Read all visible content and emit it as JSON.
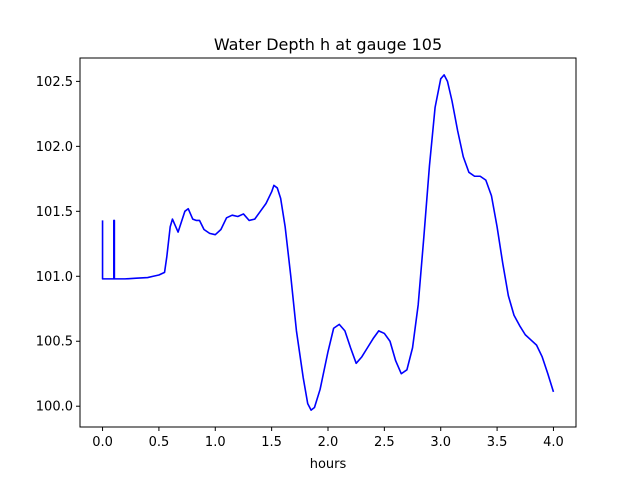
{
  "chart_data": {
    "type": "line",
    "title": "Water Depth h at gauge 105",
    "xlabel": "hours",
    "ylabel": "",
    "xlim": [
      -0.2,
      4.2
    ],
    "ylim": [
      99.84,
      102.68
    ],
    "xticks": [
      0.0,
      0.5,
      1.0,
      1.5,
      2.0,
      2.5,
      3.0,
      3.5,
      4.0
    ],
    "xtick_labels": [
      "0.0",
      "0.5",
      "1.0",
      "1.5",
      "2.0",
      "2.5",
      "3.0",
      "3.5",
      "4.0"
    ],
    "yticks": [
      100.0,
      100.5,
      101.0,
      101.5,
      102.0,
      102.5
    ],
    "ytick_labels": [
      "100.0",
      "100.5",
      "101.0",
      "101.5",
      "102.0",
      "102.5"
    ],
    "grid": false,
    "series": [
      {
        "color": "#0000ff",
        "x": [
          0.0,
          0.0,
          0.0,
          0.1,
          0.1,
          0.105,
          0.105,
          0.11,
          0.11,
          0.2,
          0.3,
          0.4,
          0.45,
          0.5,
          0.55,
          0.57,
          0.6,
          0.62,
          0.64,
          0.67,
          0.7,
          0.73,
          0.76,
          0.8,
          0.83,
          0.86,
          0.9,
          0.95,
          1.0,
          1.05,
          1.1,
          1.15,
          1.2,
          1.25,
          1.3,
          1.35,
          1.4,
          1.45,
          1.5,
          1.52,
          1.55,
          1.58,
          1.62,
          1.67,
          1.72,
          1.78,
          1.82,
          1.85,
          1.88,
          1.93,
          2.0,
          2.05,
          2.1,
          2.15,
          2.2,
          2.25,
          2.3,
          2.35,
          2.4,
          2.45,
          2.5,
          2.55,
          2.6,
          2.65,
          2.7,
          2.75,
          2.8,
          2.85,
          2.9,
          2.95,
          3.0,
          3.03,
          3.06,
          3.1,
          3.15,
          3.2,
          3.25,
          3.3,
          3.35,
          3.4,
          3.45,
          3.5,
          3.55,
          3.6,
          3.65,
          3.7,
          3.75,
          3.8,
          3.85,
          3.9,
          3.95,
          4.0
        ],
        "y": [
          101.43,
          100.98,
          100.98,
          100.98,
          101.43,
          101.43,
          100.98,
          100.98,
          100.98,
          100.98,
          100.985,
          100.99,
          101.0,
          101.01,
          101.03,
          101.15,
          101.38,
          101.44,
          101.4,
          101.34,
          101.42,
          101.5,
          101.52,
          101.44,
          101.43,
          101.43,
          101.36,
          101.33,
          101.32,
          101.36,
          101.45,
          101.47,
          101.46,
          101.48,
          101.43,
          101.44,
          101.5,
          101.56,
          101.65,
          101.7,
          101.68,
          101.6,
          101.38,
          101.0,
          100.58,
          100.22,
          100.02,
          99.97,
          99.99,
          100.13,
          100.42,
          100.6,
          100.63,
          100.58,
          100.45,
          100.33,
          100.38,
          100.45,
          100.52,
          100.58,
          100.56,
          100.5,
          100.35,
          100.25,
          100.28,
          100.45,
          100.78,
          101.3,
          101.85,
          102.3,
          102.52,
          102.55,
          102.5,
          102.35,
          102.12,
          101.92,
          101.8,
          101.77,
          101.77,
          101.74,
          101.62,
          101.38,
          101.1,
          100.85,
          100.7,
          100.62,
          100.55,
          100.51,
          100.47,
          100.38,
          100.25,
          100.11
        ]
      }
    ]
  }
}
